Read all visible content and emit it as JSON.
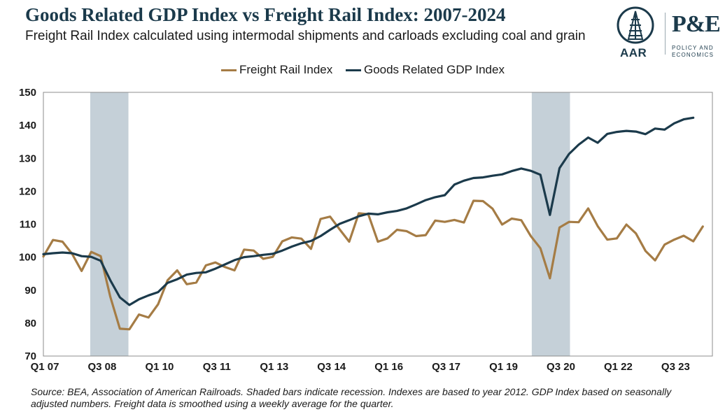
{
  "header": {
    "title": "Goods Related GDP Index vs Freight Rail Index: 2007-2024",
    "subtitle": "Freight Rail Index calculated using intermodal shipments and carloads excluding coal and grain"
  },
  "logos": {
    "aar_label": "AAR",
    "pe_label": "P&E",
    "pe_sub": "POLICY AND ECONOMICS"
  },
  "source": "Source: BEA, Association of American Railroads. Shaded bars indicate recession. Indexes are based to year 2012. GDP Index based on seasonally adjusted numbers. Freight data is smoothed using a weekly average for the quarter.",
  "colors": {
    "freight": "#a57c45",
    "gdp": "#1b3a4b",
    "recession": "#c5d0d8"
  },
  "chart_data": {
    "type": "line",
    "x_tick_labels": [
      "Q1 07",
      "Q3 08",
      "Q1 10",
      "Q3 11",
      "Q1 13",
      "Q3 14",
      "Q1 16",
      "Q3 17",
      "Q1 19",
      "Q3 20",
      "Q1 22",
      "Q3 23"
    ],
    "x_tick_index": [
      0,
      6,
      12,
      18,
      24,
      30,
      36,
      42,
      48,
      54,
      60,
      66
    ],
    "ylim": [
      70,
      150
    ],
    "yticks": [
      70,
      80,
      90,
      100,
      110,
      120,
      130,
      140,
      150
    ],
    "recessions": [
      [
        4.9,
        8.9
      ],
      [
        51.1,
        55.1
      ]
    ],
    "grid": false,
    "legend_position": "top",
    "series": [
      {
        "name": "Freight Rail Index",
        "color_key": "freight",
        "values": [
          100.2,
          105.2,
          104.7,
          101.0,
          95.8,
          101.6,
          100.3,
          88.0,
          78.3,
          78.1,
          82.6,
          81.7,
          85.7,
          93.0,
          96.0,
          91.8,
          92.3,
          97.5,
          98.4,
          97.0,
          96.0,
          102.3,
          102.0,
          99.5,
          100.1,
          104.8,
          106.0,
          105.6,
          102.5,
          111.6,
          112.3,
          108.4,
          104.7,
          113.3,
          113.0,
          104.7,
          105.7,
          108.3,
          107.9,
          106.4,
          106.7,
          111.1,
          110.7,
          111.3,
          110.5,
          117.1,
          117.0,
          114.7,
          109.9,
          111.7,
          111.2,
          106.4,
          102.7,
          93.6,
          109.0,
          110.7,
          110.6,
          114.8,
          109.4,
          105.3,
          105.7,
          109.9,
          107.2,
          101.9,
          99.0,
          103.8,
          105.3,
          106.5,
          104.8,
          109.3
        ]
      },
      {
        "name": "Goods Related GDP Index",
        "color_key": "gdp",
        "values": [
          100.9,
          101.2,
          101.4,
          101.2,
          100.3,
          100.1,
          98.9,
          93.0,
          87.8,
          85.5,
          87.2,
          88.4,
          89.4,
          92.2,
          93.3,
          94.7,
          95.2,
          95.4,
          96.5,
          97.8,
          99.1,
          100.0,
          100.3,
          100.7,
          101.0,
          102.0,
          103.2,
          104.2,
          104.9,
          106.4,
          108.3,
          110.1,
          111.2,
          112.4,
          113.2,
          113.0,
          113.6,
          114.0,
          114.8,
          116.0,
          117.3,
          118.2,
          118.8,
          122.0,
          123.2,
          124.0,
          124.2,
          124.7,
          125.1,
          126.1,
          126.9,
          126.2,
          125.0,
          112.8,
          127.0,
          131.3,
          134.1,
          136.3,
          134.7,
          137.4,
          138.0,
          138.3,
          138.1,
          137.3,
          139.0,
          138.7,
          140.6,
          141.8,
          142.3
        ]
      }
    ]
  }
}
